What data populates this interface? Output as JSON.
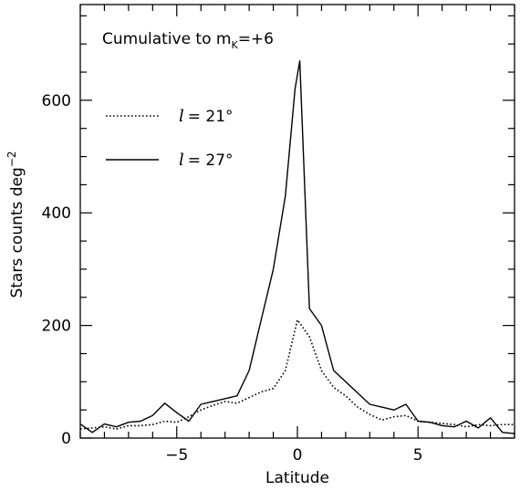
{
  "chart_data": {
    "type": "line",
    "title": "",
    "xlabel": "Latitude",
    "ylabel": "Stars counts deg",
    "ylabel_sup": "−2",
    "xlim": [
      -9,
      9
    ],
    "ylim": [
      0,
      770
    ],
    "xticks": [
      -5,
      0,
      5
    ],
    "xtick_labels": [
      "−5",
      "0",
      "5"
    ],
    "yticks": [
      0,
      200,
      400,
      600
    ],
    "ytick_labels": [
      "0",
      "200",
      "400",
      "600"
    ],
    "grid": false,
    "annotation": {
      "text": "Cumulative to m",
      "sub": "K",
      "tail": "=+6"
    },
    "legend": {
      "placement": "top-left",
      "entries": [
        {
          "series": 0,
          "lhs": "l",
          "rhs": "=  21°"
        },
        {
          "series": 1,
          "lhs": "l",
          "rhs": "=  27°"
        }
      ]
    },
    "series": [
      {
        "style": "dotted",
        "x": [
          -9,
          -8.5,
          -8,
          -7.5,
          -7,
          -6.5,
          -6,
          -5.5,
          -5,
          -4.5,
          -4,
          -3.5,
          -3,
          -2.5,
          -2,
          -1.5,
          -1,
          -0.5,
          0,
          0.5,
          1,
          1.5,
          2,
          2.5,
          3,
          3.5,
          4,
          4.5,
          5,
          5.5,
          6,
          6.5,
          7,
          7.5,
          8,
          8.5,
          9
        ],
        "values": [
          16,
          18,
          20,
          16,
          22,
          22,
          24,
          30,
          28,
          38,
          50,
          58,
          65,
          62,
          72,
          82,
          88,
          120,
          210,
          180,
          120,
          90,
          75,
          55,
          42,
          32,
          38,
          40,
          30,
          28,
          26,
          24,
          20,
          24,
          22,
          24,
          24
        ]
      },
      {
        "style": "solid",
        "x": [
          -9,
          -8.5,
          -8,
          -7.5,
          -7,
          -6.5,
          -6,
          -5.5,
          -5,
          -4.5,
          -4,
          -3.5,
          -3,
          -2.5,
          -2,
          -1.5,
          -1,
          -0.5,
          -0.1,
          0.1,
          0.5,
          1,
          1.5,
          2,
          2.5,
          3,
          3.5,
          4,
          4.5,
          5,
          5.5,
          6,
          6.5,
          7,
          7.5,
          8,
          8.5,
          9
        ],
        "values": [
          25,
          10,
          25,
          20,
          28,
          30,
          40,
          62,
          45,
          30,
          60,
          65,
          70,
          75,
          120,
          210,
          300,
          430,
          620,
          670,
          230,
          200,
          120,
          100,
          80,
          60,
          55,
          50,
          60,
          30,
          28,
          22,
          20,
          30,
          18,
          36,
          10,
          8
        ]
      }
    ]
  }
}
